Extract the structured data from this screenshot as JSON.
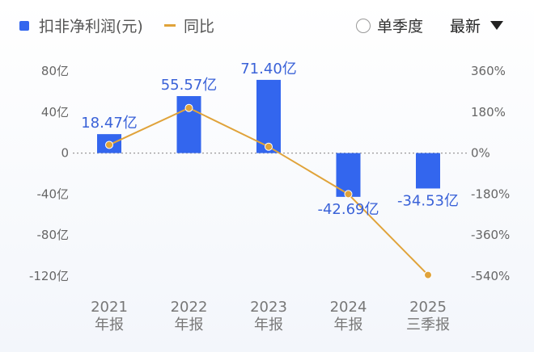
{
  "legend": {
    "bar_label": "扣非净利润(元)",
    "line_label": "同比"
  },
  "controls": {
    "quarter_label": "单季度",
    "sort_label": "最新"
  },
  "colors": {
    "bar": "#3366ee",
    "line": "#e0a33a",
    "label": "#3a62d8"
  },
  "chart_data": {
    "type": "bar",
    "categories": [
      "2021\n年报",
      "2022\n年报",
      "2023\n年报",
      "2024\n年报",
      "2025\n三季报"
    ],
    "series": [
      {
        "name": "扣非净利润(元)",
        "type": "bar",
        "axis": "left",
        "values": [
          18.47,
          55.57,
          71.4,
          -42.69,
          -34.53
        ],
        "labels": [
          "18.47亿",
          "55.57亿",
          "71.40亿",
          "-42.69亿",
          "-34.53亿"
        ]
      },
      {
        "name": "同比",
        "type": "line",
        "axis": "right",
        "values": [
          36,
          198,
          28,
          -180,
          -535
        ]
      }
    ],
    "y_left": {
      "ticks": [
        "80亿",
        "40亿",
        "0",
        "-40亿",
        "-80亿",
        "-120亿"
      ],
      "tick_values": [
        80,
        40,
        0,
        -40,
        -80,
        -120
      ],
      "ylim": [
        -120,
        80
      ]
    },
    "y_right": {
      "ticks": [
        "360%",
        "180%",
        "0%",
        "-180%",
        "-360%",
        "-540%"
      ],
      "tick_values": [
        360,
        180,
        0,
        -180,
        -360,
        -540
      ],
      "ylim": [
        -540,
        360
      ]
    },
    "zero_line": "dashed",
    "grid": false
  }
}
